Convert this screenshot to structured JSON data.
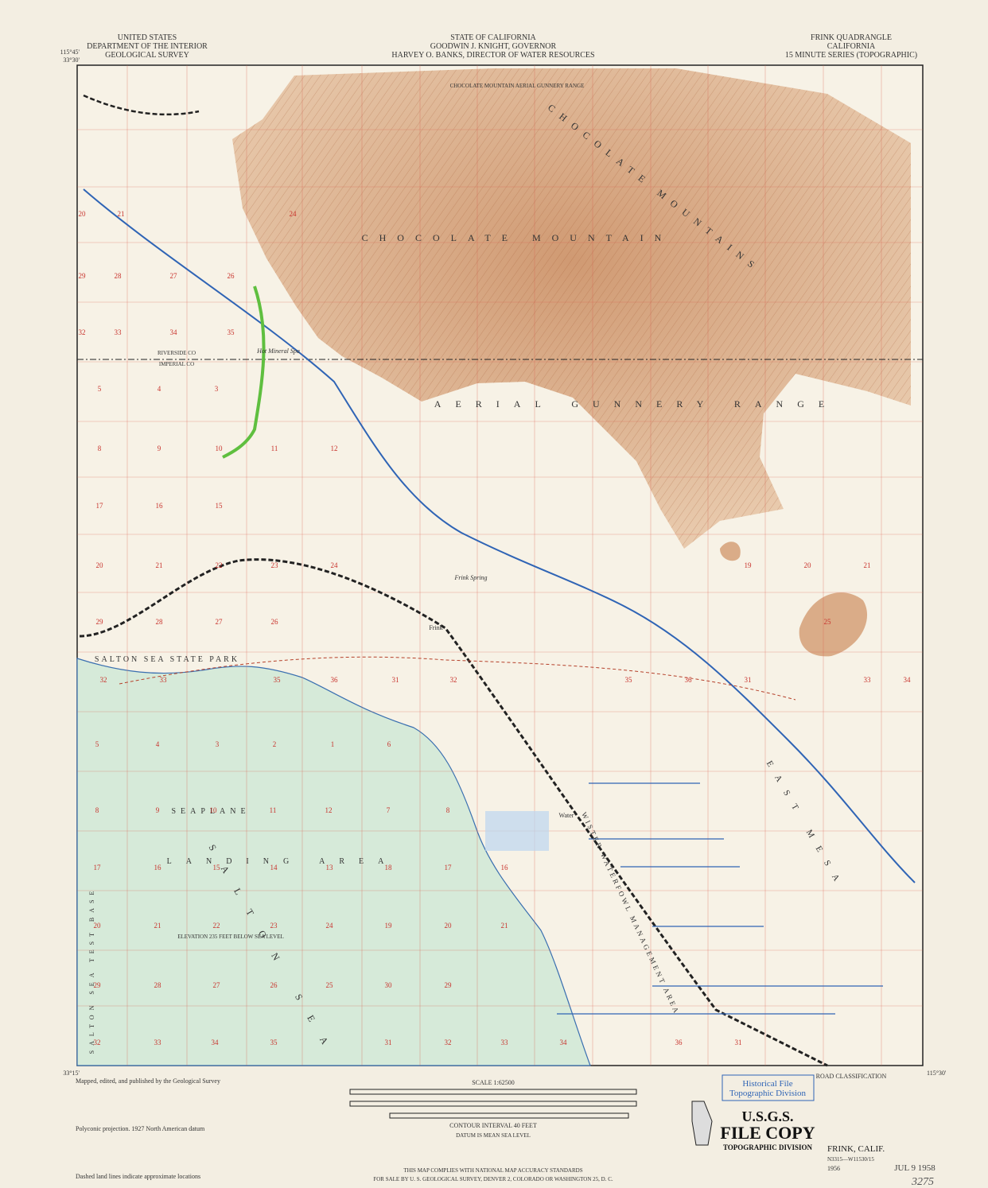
{
  "header": {
    "left": [
      "UNITED STATES",
      "DEPARTMENT OF THE INTERIOR",
      "GEOLOGICAL SURVEY"
    ],
    "center": [
      "STATE OF CALIFORNIA",
      "GOODWIN J. KNIGHT, GOVERNOR",
      "HARVEY O. BANKS, DIRECTOR OF WATER RESOURCES"
    ],
    "right": [
      "FRINK QUADRANGLE",
      "CALIFORNIA",
      "15 MINUTE SERIES (TOPOGRAPHIC)"
    ]
  },
  "corners": [
    "33°30'",
    "115°45'",
    "33°15'",
    "115°30'"
  ],
  "map_labels": [
    "CHOCOLATE MOUNTAIN",
    "CHOCOLATE MOUNTAINS",
    "AERIAL GUNNERY RANGE",
    "SALTON SEA STATE PARK",
    "SEAPLANE",
    "LANDING AREA",
    "SALTON SEA",
    "EAST MESA",
    "WISTER WATERFOWL MANAGEMENT AREA",
    "Frink Spring",
    "Hot Mineral Spa",
    "Frink",
    "Water",
    "ELEVATION 235 FEET BELOW SEA LEVEL",
    "SALTON SEA TEST BASE",
    "RIVERSIDE CO",
    "IMPERIAL CO",
    "CHOCOLATE MOUNTAIN AERIAL GUNNERY RANGE"
  ],
  "section_numbers": [
    [
      20,
      21,
      24
    ],
    [
      29,
      28,
      27,
      26
    ],
    [
      32,
      33,
      34,
      35
    ],
    [
      5,
      4,
      3
    ],
    [
      8,
      9,
      10,
      11,
      12
    ],
    [
      17,
      16,
      15
    ],
    [
      20,
      21,
      22,
      23,
      24,
      19,
      20,
      21
    ],
    [
      29,
      28,
      27,
      26,
      25
    ],
    [
      32,
      33,
      35,
      36,
      31,
      32,
      35,
      36,
      31,
      33,
      34
    ],
    [
      5,
      4,
      3,
      2,
      1,
      6
    ],
    [
      8,
      9,
      10,
      11,
      12,
      7,
      8
    ],
    [
      17,
      16,
      15,
      14,
      13,
      18,
      17,
      16
    ],
    [
      20,
      21,
      22,
      23,
      24,
      19,
      20,
      21
    ],
    [
      29,
      28,
      27,
      26,
      25,
      30,
      29
    ],
    [
      32,
      33,
      34,
      35,
      31,
      32,
      33,
      34,
      36,
      31
    ]
  ],
  "footer": {
    "left": [
      "Mapped, edited, and published by the Geological Survey",
      "Polyconic projection. 1927 North American datum",
      "Dashed land lines indicate approximate locations"
    ],
    "scale": "SCALE 1:62500",
    "contour": "CONTOUR INTERVAL 40 FEET",
    "datum": "DATUM IS MEAN SEA LEVEL",
    "compliance": "THIS MAP COMPLIES WITH NATIONAL MAP ACCURACY STANDARDS",
    "sale": "FOR SALE BY U. S. GEOLOGICAL SURVEY, DENVER 2, COLORADO OR WASHINGTON 25, D. C.",
    "road_classification": "ROAD CLASSIFICATION",
    "stamp_lines": [
      "Historical File",
      "Topographic Division"
    ],
    "file_copy": [
      "U.S.G.S.",
      "FILE COPY",
      "TOPOGRAPHIC DIVISION"
    ],
    "quad_name": "FRINK, CALIF.",
    "quad_code": "N3315—W11530/15",
    "year": "1956",
    "date_stamp": "JUL 9 1958",
    "handwritten": "3275"
  }
}
